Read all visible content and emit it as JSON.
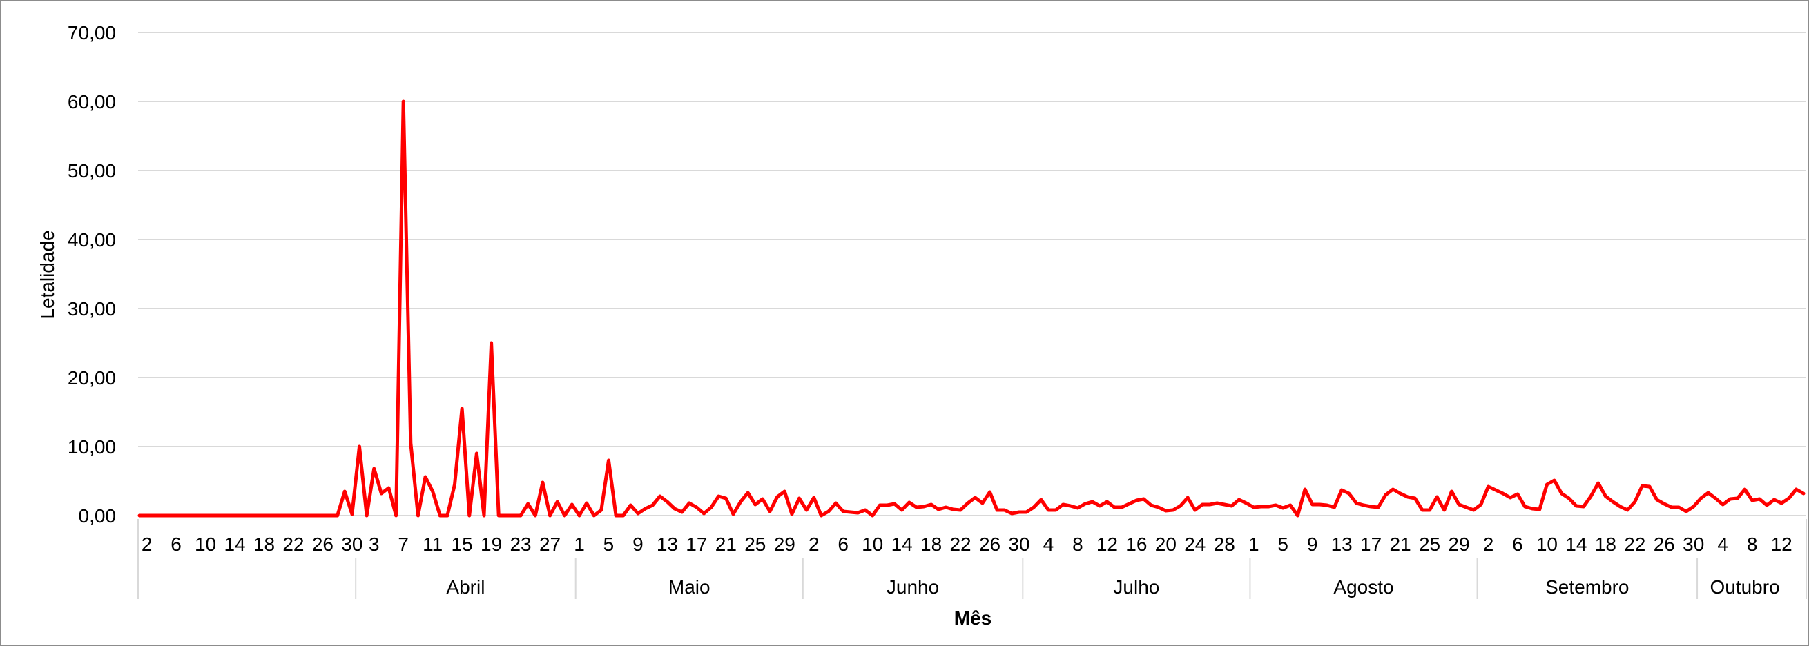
{
  "chart_data": {
    "type": "line",
    "title": "",
    "xlabel": "Mês",
    "ylabel": "Letalidade",
    "ylim": [
      0,
      70
    ],
    "y_ticks": [
      "0,00",
      "10,00",
      "20,00",
      "30,00",
      "40,00",
      "50,00",
      "60,00",
      "70,00"
    ],
    "grid": "horizontal",
    "legend": "none",
    "line_color": "#ff0000",
    "months": [
      {
        "name": "",
        "days": 30
      },
      {
        "name": "Abril",
        "days": 30
      },
      {
        "name": "Maio",
        "days": 31
      },
      {
        "name": "Junho",
        "days": 30
      },
      {
        "name": "Julho",
        "days": 31
      },
      {
        "name": "Agosto",
        "days": 31
      },
      {
        "name": "Setembro",
        "days": 30
      },
      {
        "name": "Outubro",
        "days": 13
      }
    ],
    "x_day_labels": [
      {
        "month": 0,
        "labels": [
          "2",
          "6",
          "10",
          "14",
          "18",
          "22",
          "26",
          "30"
        ]
      },
      {
        "month": 1,
        "labels": [
          "3",
          "7",
          "11",
          "15",
          "19",
          "23",
          "27"
        ]
      },
      {
        "month": 2,
        "labels": [
          "1",
          "5",
          "9",
          "13",
          "17",
          "21",
          "25",
          "29"
        ]
      },
      {
        "month": 3,
        "labels": [
          "2",
          "6",
          "10",
          "14",
          "18",
          "22",
          "26",
          "30"
        ]
      },
      {
        "month": 4,
        "labels": [
          "4",
          "8",
          "12",
          "16",
          "20",
          "24",
          "28"
        ]
      },
      {
        "month": 5,
        "labels": [
          "1",
          "5",
          "9",
          "13",
          "17",
          "21",
          "25",
          "29"
        ]
      },
      {
        "month": 6,
        "labels": [
          "2",
          "6",
          "10",
          "14",
          "18",
          "22",
          "26",
          "30"
        ]
      },
      {
        "month": 7,
        "labels": [
          "4",
          "8",
          "12"
        ]
      }
    ],
    "series": [
      {
        "values": [
          0,
          0,
          0,
          0,
          0,
          0,
          0,
          0,
          0,
          0,
          0,
          0,
          0,
          0,
          0,
          0,
          0,
          0,
          0,
          0,
          0,
          0,
          0,
          0,
          0,
          0,
          0,
          0,
          3.5,
          0.2,
          10,
          0,
          6.8,
          3.2,
          4,
          0,
          60,
          10.5,
          0,
          5.6,
          3.5,
          0,
          0,
          4.5,
          15.5,
          0,
          9,
          0,
          25,
          0,
          0,
          0,
          0,
          1.7,
          0,
          4.8,
          0,
          2,
          0,
          1.6,
          0,
          1.8,
          0,
          0.8,
          8,
          0,
          0,
          1.5,
          0.3,
          1,
          1.5,
          2.8,
          2,
          1,
          0.5,
          1.8,
          1.2,
          0.3,
          1.2,
          2.8,
          2.5,
          0.2,
          2,
          3.3,
          1.6,
          2.4,
          0.6,
          2.7,
          3.5,
          0.2,
          2.5,
          0.8,
          2.6,
          0,
          0.6,
          1.8,
          0.6,
          0.5,
          0.4,
          0.8,
          0,
          1.5,
          1.5,
          1.7,
          0.8,
          1.9,
          1.2,
          1.3,
          1.6,
          0.9,
          1.2,
          0.9,
          0.8,
          1.8,
          2.6,
          1.8,
          3.4,
          0.8,
          0.8,
          0.3,
          0.5,
          0.5,
          1.2,
          2.3,
          0.8,
          0.8,
          1.6,
          1.4,
          1.1,
          1.7,
          2,
          1.4,
          2,
          1.2,
          1.2,
          1.7,
          2.2,
          2.4,
          1.5,
          1.2,
          0.7,
          0.8,
          1.4,
          2.6,
          0.8,
          1.6,
          1.6,
          1.8,
          1.6,
          1.4,
          2.3,
          1.8,
          1.2,
          1.3,
          1.3,
          1.5,
          1.1,
          1.5,
          0,
          3.8,
          1.6,
          1.6,
          1.5,
          1.2,
          3.7,
          3.2,
          1.8,
          1.5,
          1.3,
          1.2,
          3,
          3.8,
          3.2,
          2.7,
          2.5,
          0.8,
          0.8,
          2.7,
          0.8,
          3.5,
          1.6,
          1.2,
          0.8,
          1.6,
          4.2,
          3.7,
          3.2,
          2.6,
          3.1,
          1.3,
          1,
          0.9,
          4.5,
          5.1,
          3.2,
          2.5,
          1.4,
          1.3,
          2.8,
          4.7,
          2.8,
          2,
          1.3,
          0.8,
          2,
          4.3,
          4.2,
          2.3,
          1.7,
          1.2,
          1.2,
          0.6,
          1.3,
          2.5,
          3.3,
          2.5,
          1.6,
          2.4,
          2.5,
          3.8,
          2.2,
          2.4,
          1.5,
          2.3,
          1.8,
          2.5,
          3.8,
          3.2
        ]
      }
    ]
  }
}
